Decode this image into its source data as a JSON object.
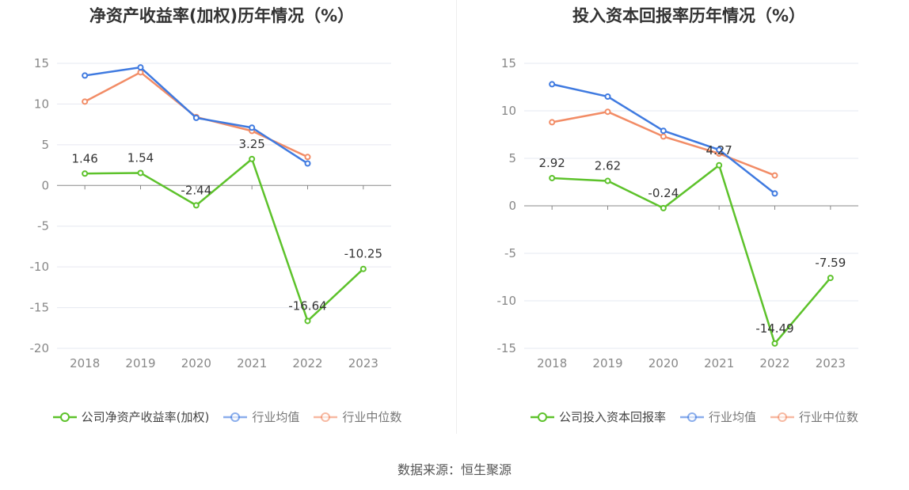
{
  "source_text": "数据来源：恒生聚源",
  "chart_data": [
    {
      "type": "line",
      "title": "净资产收益率(加权)历年情况（%）",
      "xlabel": "",
      "ylabel": "",
      "categories": [
        "2018",
        "2019",
        "2020",
        "2021",
        "2022",
        "2023"
      ],
      "ylim": [
        -20,
        15
      ],
      "yticks": [
        15,
        10,
        5,
        0,
        -5,
        -10,
        -15,
        -20
      ],
      "grid": true,
      "legend_position": "bottom",
      "series": [
        {
          "name": "公司净资产收益率(加权)",
          "color": "#5dc22b",
          "values": [
            1.46,
            1.54,
            -2.44,
            3.25,
            -16.64,
            -10.25
          ],
          "labels": [
            "1.46",
            "1.54",
            "-2.44",
            "3.25",
            "-16.64",
            "-10.25"
          ]
        },
        {
          "name": "行业均值",
          "color": "#3f7ae0",
          "values": [
            13.5,
            14.5,
            8.3,
            7.1,
            2.7,
            null
          ]
        },
        {
          "name": "行业中位数",
          "color": "#f28c66",
          "values": [
            10.3,
            13.9,
            8.4,
            6.7,
            3.5,
            null
          ]
        }
      ]
    },
    {
      "type": "line",
      "title": "投入资本回报率历年情况（%）",
      "xlabel": "",
      "ylabel": "",
      "categories": [
        "2018",
        "2019",
        "2020",
        "2021",
        "2022",
        "2023"
      ],
      "ylim": [
        -15,
        15
      ],
      "yticks": [
        15,
        10,
        5,
        0,
        -5,
        -10,
        -15
      ],
      "grid": true,
      "legend_position": "bottom",
      "series": [
        {
          "name": "公司投入资本回报率",
          "color": "#5dc22b",
          "values": [
            2.92,
            2.62,
            -0.24,
            4.27,
            -14.49,
            -7.59
          ],
          "labels": [
            "2.92",
            "2.62",
            "-0.24",
            "4.27",
            "-14.49",
            "-7.59"
          ]
        },
        {
          "name": "行业均值",
          "color": "#3f7ae0",
          "values": [
            12.8,
            11.5,
            7.9,
            5.9,
            1.3,
            null
          ]
        },
        {
          "name": "行业中位数",
          "color": "#f28c66",
          "values": [
            8.8,
            9.9,
            7.3,
            5.5,
            3.2,
            null
          ]
        }
      ]
    }
  ]
}
